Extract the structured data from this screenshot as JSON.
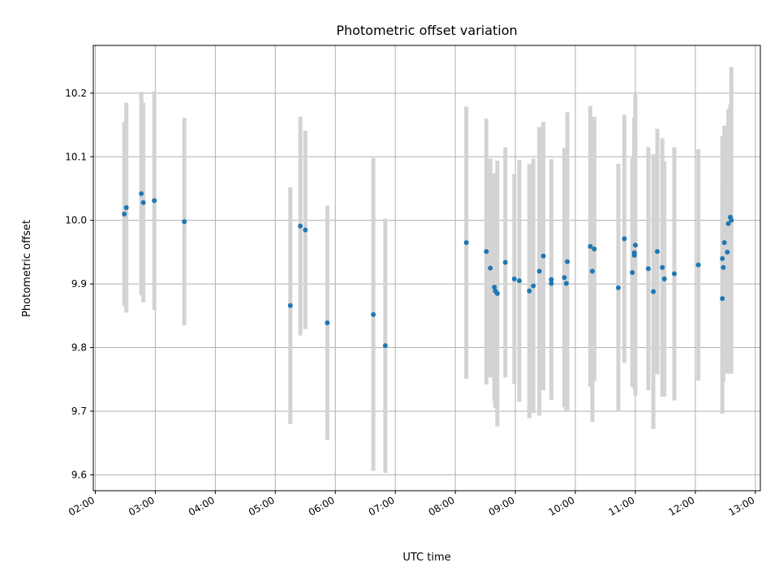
{
  "chart_data": {
    "type": "scatter",
    "title": "Photometric offset variation",
    "xlabel": "UTC time",
    "ylabel": "Photometric offset",
    "xlim": [
      "01:58",
      "13:05"
    ],
    "ylim": [
      9.575,
      10.275
    ],
    "x_ticks": [
      "02:00",
      "03:00",
      "04:00",
      "05:00",
      "06:00",
      "07:00",
      "08:00",
      "09:00",
      "10:00",
      "11:00",
      "12:00",
      "13:00"
    ],
    "y_ticks": [
      9.6,
      9.7,
      9.8,
      9.9,
      10.0,
      10.1,
      10.2
    ],
    "grid": true,
    "colors": {
      "marker": "#1f77b4",
      "errorbar": "#d3d3d3"
    },
    "series": [
      {
        "x": [
          "02:29",
          "02:31",
          "02:46",
          "02:48",
          "02:59",
          "03:29",
          "05:15",
          "05:25",
          "05:30",
          "05:52",
          "06:38",
          "06:50",
          "08:11",
          "08:31",
          "08:35",
          "08:39",
          "08:40",
          "08:42",
          "08:50",
          "08:59",
          "09:04",
          "09:14",
          "09:18",
          "09:24",
          "09:28",
          "09:36",
          "09:36",
          "09:49",
          "09:51",
          "09:52",
          "10:15",
          "10:17",
          "10:19",
          "10:43",
          "10:49",
          "10:57",
          "10:59",
          "10:59",
          "11:00",
          "11:13",
          "11:18",
          "11:22",
          "11:27",
          "11:29",
          "11:39",
          "12:03",
          "12:27",
          "12:27",
          "12:28",
          "12:29",
          "12:32",
          "12:33",
          "12:35",
          "12:36"
        ],
        "y": [
          10.01,
          10.02,
          10.042,
          10.028,
          10.031,
          9.998,
          9.866,
          9.991,
          9.985,
          9.839,
          9.852,
          9.803,
          9.965,
          9.951,
          9.925,
          9.895,
          9.889,
          9.885,
          9.934,
          9.908,
          9.905,
          9.889,
          9.897,
          9.92,
          9.944,
          9.907,
          9.901,
          9.91,
          9.901,
          9.935,
          9.959,
          9.92,
          9.955,
          9.894,
          9.971,
          9.918,
          9.945,
          9.949,
          9.961,
          9.924,
          9.888,
          9.951,
          9.926,
          9.908,
          9.916,
          9.93,
          9.877,
          9.94,
          9.926,
          9.965,
          9.95,
          9.995,
          10.005,
          10.0
        ],
        "yerr": [
          0.145,
          0.165,
          0.16,
          0.157,
          0.172,
          0.163,
          0.186,
          0.172,
          0.156,
          0.184,
          0.246,
          0.2,
          0.214,
          0.209,
          0.172,
          0.179,
          0.184,
          0.209,
          0.181,
          0.165,
          0.19,
          0.2,
          0.2,
          0.227,
          0.211,
          0.189,
          0.18,
          0.204,
          0.2,
          0.235,
          0.221,
          0.237,
          0.208,
          0.195,
          0.195,
          0.18,
          0.197,
          0.213,
          0.237,
          0.191,
          0.216,
          0.193,
          0.203,
          0.185,
          0.199,
          0.182,
          0.181,
          0.193,
          0.18,
          0.184,
          0.191,
          0.18,
          0.178,
          0.241
        ]
      }
    ]
  }
}
